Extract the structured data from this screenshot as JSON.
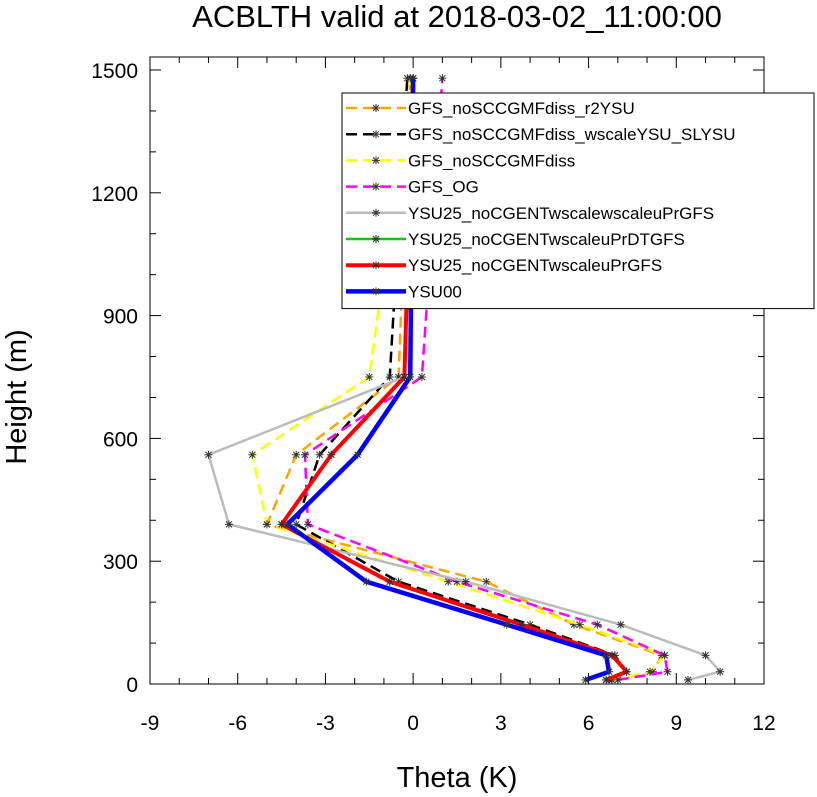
{
  "chart_data": {
    "type": "line",
    "title": "ACBLTH valid at 2018-03-02_11:00:00",
    "xlabel": "Theta (K)",
    "ylabel": "Height (m)",
    "xlim": [
      -9,
      12
    ],
    "ylim": [
      0,
      1500
    ],
    "xticks": [
      "-9",
      "-6",
      "-3",
      "0",
      "3",
      "6",
      "9",
      "12"
    ],
    "yticks": [
      "0",
      "300",
      "600",
      "900",
      "1200",
      "1500"
    ],
    "grid": false,
    "legend": "top-right",
    "y": [
      10,
      30,
      70,
      145,
      250,
      390,
      560,
      750,
      1480
    ],
    "series": [
      {
        "name": "GFS_noSCCGMFdiss_r2YSU",
        "color": "#FFA500",
        "dash": "dash",
        "x": [
          6.8,
          8.2,
          8.5,
          5.5,
          2.5,
          -5.0,
          -4.0,
          -0.5,
          -0.1
        ]
      },
      {
        "name": "GFS_noSCCGMFdiss_wscaleYSU_SLYSU",
        "color": "#000000",
        "dash": "dash",
        "x": [
          6.7,
          7.3,
          6.9,
          4.0,
          -0.5,
          -4.0,
          -3.2,
          -0.8,
          -0.2
        ]
      },
      {
        "name": "GFS_noSCCGMFdiss",
        "color": "#FFFF00",
        "dash": "dash",
        "x": [
          6.8,
          8.1,
          8.6,
          5.7,
          1.2,
          -5.0,
          -5.5,
          -1.5,
          -0.1
        ]
      },
      {
        "name": "GFS_OG",
        "color": "#FF00FF",
        "dash": "dash",
        "x": [
          7.0,
          8.7,
          8.6,
          6.3,
          1.5,
          -3.6,
          -3.7,
          0.3,
          1.0
        ]
      },
      {
        "name": "YSU25_noCGENTwscalewscaleuPrGFS",
        "color": "#BBBBBB",
        "dash": "solid",
        "x": [
          9.4,
          10.5,
          10.0,
          7.1,
          1.8,
          -6.3,
          -7.0,
          -0.3,
          0.0
        ]
      },
      {
        "name": "YSU25_noCGENTwscaleuPrDTGFS",
        "color": "#00CC00",
        "dash": "solid",
        "x": [
          6.6,
          7.3,
          6.8,
          3.7,
          -0.8,
          -4.5,
          -2.8,
          -0.3,
          0.0
        ]
      },
      {
        "name": "YSU25_noCGENTwscaleuPrGFS",
        "color": "#FF0000",
        "dash": "solid",
        "x": [
          6.6,
          7.3,
          6.8,
          3.7,
          -0.8,
          -4.5,
          -2.8,
          -0.3,
          0.0
        ]
      },
      {
        "name": "YSU00",
        "color": "#0000FF",
        "dash": "solid",
        "x": [
          5.9,
          6.7,
          6.6,
          3.2,
          -1.6,
          -4.3,
          -1.9,
          -0.1,
          0.0
        ]
      }
    ]
  }
}
